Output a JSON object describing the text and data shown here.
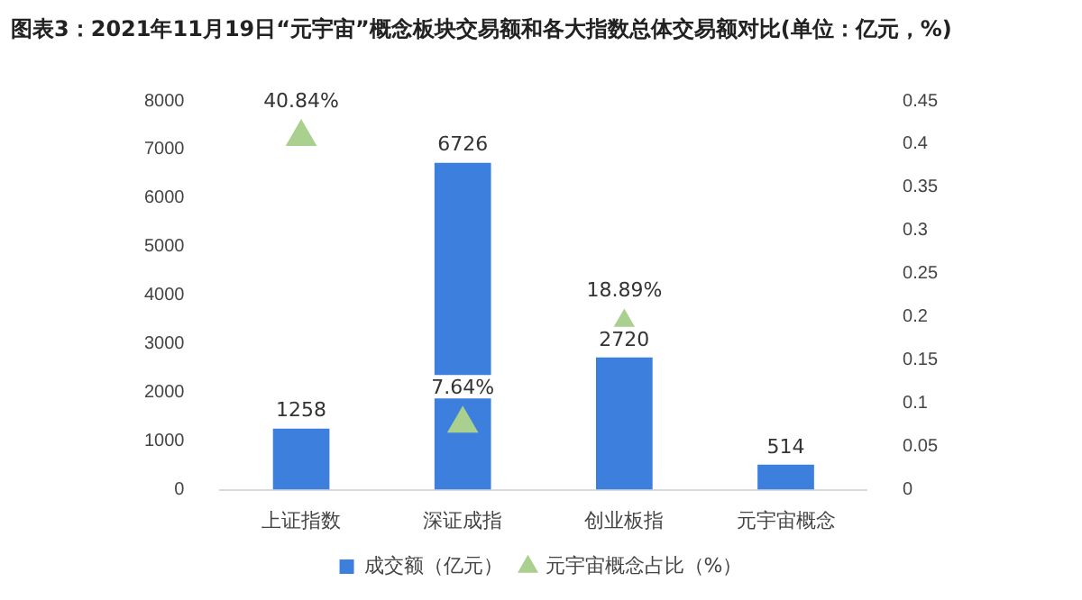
{
  "chart_data": {
    "type": "bar",
    "title": "图表3：2021年11月19日“元宇宙”概念板块交易额和各大指数总体交易额对比(单位：亿元，%)",
    "categories": [
      "上证指数",
      "深证成指",
      "创业板指",
      "元宇宙概念"
    ],
    "series": [
      {
        "name": "成交额（亿元）",
        "color": "#3c7fdd",
        "values": [
          1258,
          6726,
          2720,
          514
        ],
        "value_labels": [
          "1258",
          "6726",
          "2720",
          "514"
        ]
      },
      {
        "name": "元宇宙概念占比（%）",
        "type": "scatter",
        "axis": "y2",
        "marker": "triangle",
        "color": "#a9d08e",
        "values": [
          0.4084,
          0.0764,
          0.1889,
          null
        ],
        "value_labels": [
          "40.84%",
          "7.64%",
          "18.89%",
          null
        ]
      }
    ],
    "ylim": [
      0,
      8000
    ],
    "yticks": [
      0,
      1000,
      2000,
      3000,
      4000,
      5000,
      6000,
      7000,
      8000
    ],
    "y2lim": [
      0,
      0.45
    ],
    "y2ticks": [
      0,
      0.05,
      0.1,
      0.15,
      0.2,
      0.25,
      0.3,
      0.35,
      0.4,
      0.45
    ],
    "legend": "bottom",
    "grid": false
  }
}
